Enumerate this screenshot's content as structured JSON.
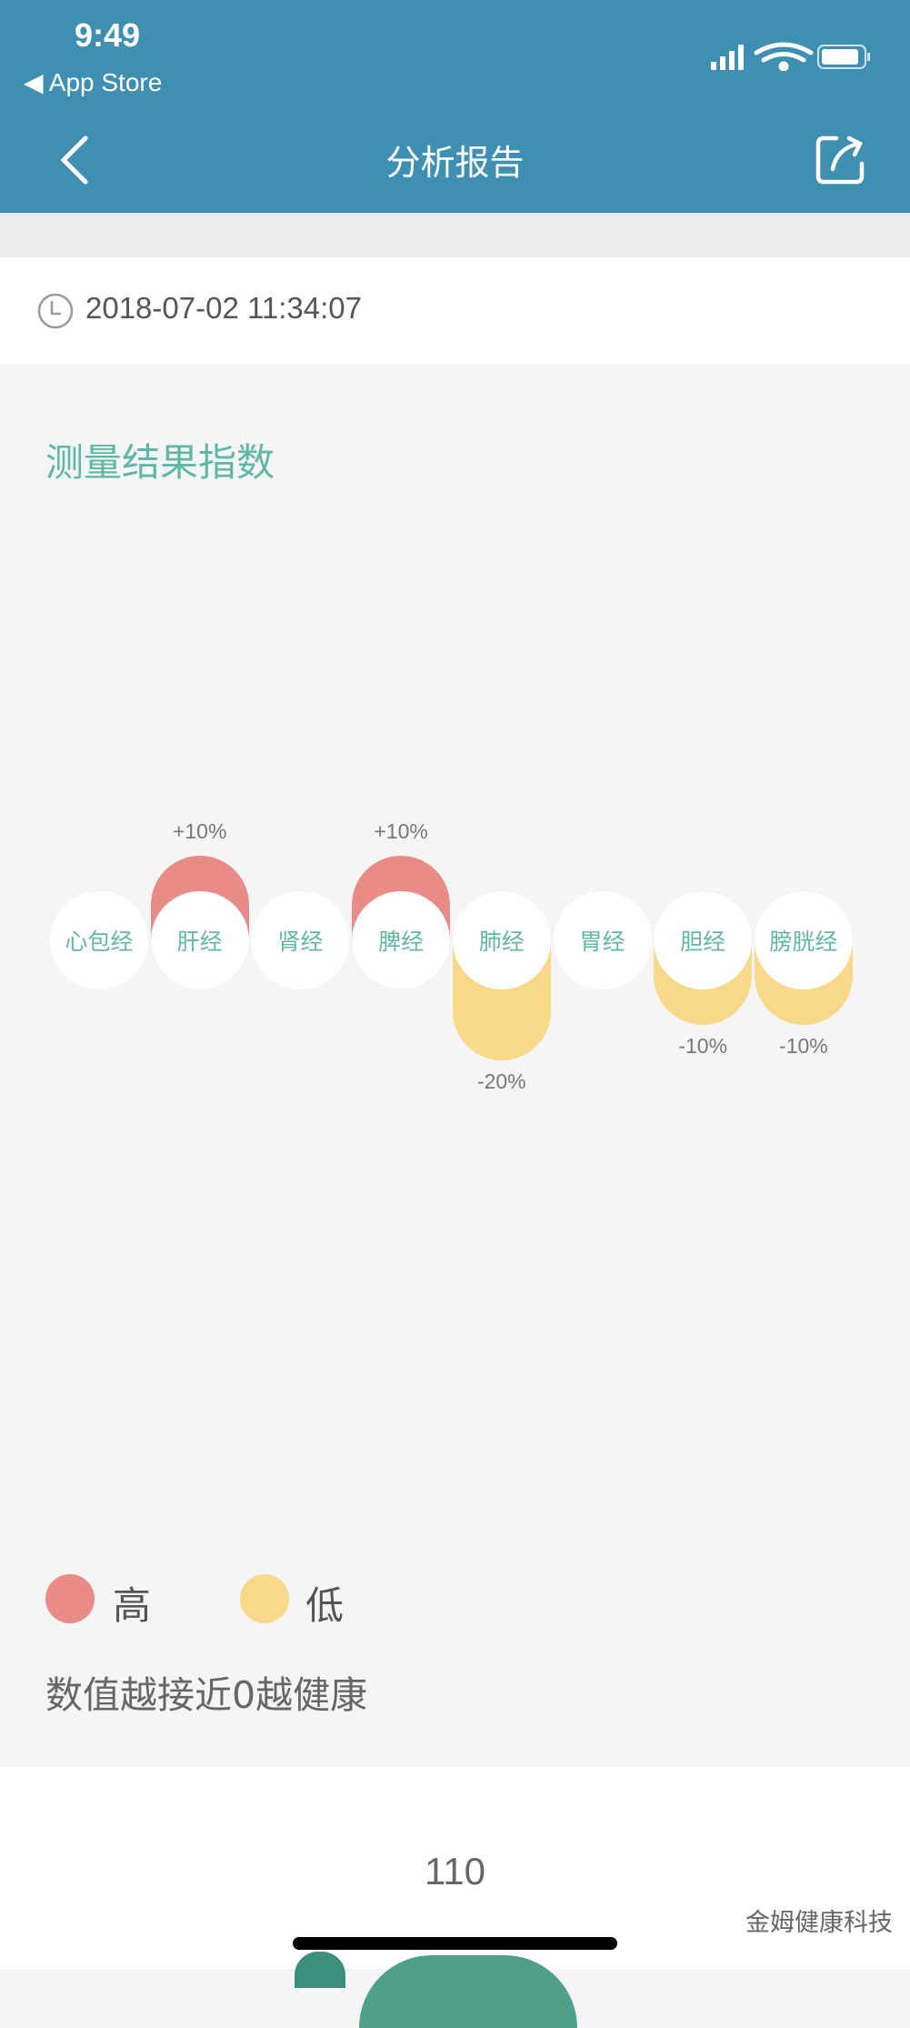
{
  "status_bar": {
    "time": "9:49",
    "back_app": "App Store"
  },
  "nav": {
    "title": "分析报告",
    "back_icon": "chevron-left-icon",
    "share_icon": "share-icon"
  },
  "report": {
    "datetime": "2018-07-02 11:34:07"
  },
  "section": {
    "title": "测量结果指数"
  },
  "colors": {
    "header": "#3f8fb3",
    "accent": "#5fb8a6",
    "high": "#e98b87",
    "low": "#f8d98a"
  },
  "chart_data": {
    "type": "bar",
    "categories": [
      "心包经",
      "肝经",
      "肾经",
      "脾经",
      "肺经",
      "胃经",
      "胆经",
      "膀胱经"
    ],
    "values": [
      0,
      10,
      0,
      10,
      -20,
      0,
      -10,
      -10
    ],
    "labels": [
      "",
      "+10%",
      "",
      "+10%",
      "-20%",
      "",
      "-10%",
      "-10%"
    ],
    "unit": "%"
  },
  "legend": [
    {
      "label": "高",
      "color": "#e98b87"
    },
    {
      "label": "低",
      "color": "#f8d98a"
    }
  ],
  "note": "数值越接近0越健康",
  "next_section": {
    "value": "110"
  },
  "watermark": "金姆健康科技"
}
